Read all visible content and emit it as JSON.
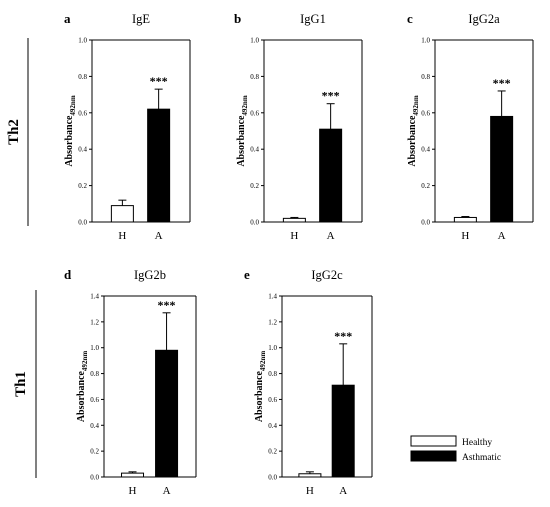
{
  "groups": [
    {
      "label": "Th2"
    },
    {
      "label": "Th1"
    }
  ],
  "legend": {
    "healthy": "Healthy",
    "asthmatic": "Asthmatic"
  },
  "colors": {
    "healthy_fill": "#ffffff",
    "asthmatic_fill": "#000000",
    "stroke": "#000000"
  },
  "chart_data": [
    {
      "type": "bar",
      "panel": "a",
      "title": "IgE",
      "group": "Th2",
      "ylabel_main": "Absorbance",
      "ylabel_sub": "492nm",
      "categories": [
        "H",
        "A"
      ],
      "values": [
        0.09,
        0.62
      ],
      "errors": [
        0.03,
        0.11
      ],
      "significance": [
        "",
        "***"
      ],
      "ylim": [
        0,
        1.0
      ],
      "yticks": [
        "0.0",
        "0.2",
        "0.4",
        "0.6",
        "0.8",
        "1.0"
      ]
    },
    {
      "type": "bar",
      "panel": "b",
      "title": "IgG1",
      "group": "Th2",
      "ylabel_main": "Absorbance",
      "ylabel_sub": "492nm",
      "categories": [
        "H",
        "A"
      ],
      "values": [
        0.02,
        0.51
      ],
      "errors": [
        0.005,
        0.14
      ],
      "significance": [
        "",
        "***"
      ],
      "ylim": [
        0,
        1.0
      ],
      "yticks": [
        "0.0",
        "0.2",
        "0.4",
        "0.6",
        "0.8",
        "1.0"
      ]
    },
    {
      "type": "bar",
      "panel": "c",
      "title": "IgG2a",
      "group": "Th2",
      "ylabel_main": "Absorbance",
      "ylabel_sub": "492nm",
      "categories": [
        "H",
        "A"
      ],
      "values": [
        0.025,
        0.58
      ],
      "errors": [
        0.005,
        0.14
      ],
      "significance": [
        "",
        "***"
      ],
      "ylim": [
        0,
        1.0
      ],
      "yticks": [
        "0.0",
        "0.2",
        "0.4",
        "0.6",
        "0.8",
        "1.0"
      ]
    },
    {
      "type": "bar",
      "panel": "d",
      "title": "IgG2b",
      "group": "Th1",
      "ylabel_main": "Absorbance",
      "ylabel_sub": "492nm",
      "categories": [
        "H",
        "A"
      ],
      "values": [
        0.03,
        0.98
      ],
      "errors": [
        0.01,
        0.29
      ],
      "significance": [
        "",
        "***"
      ],
      "ylim": [
        0,
        1.4
      ],
      "yticks": [
        "0.0",
        "0.2",
        "0.4",
        "0.6",
        "0.8",
        "1.0",
        "1.2",
        "1.4"
      ]
    },
    {
      "type": "bar",
      "panel": "e",
      "title": "IgG2c",
      "group": "Th1",
      "ylabel_main": "Absorbance",
      "ylabel_sub": "492nm",
      "categories": [
        "H",
        "A"
      ],
      "values": [
        0.025,
        0.71
      ],
      "errors": [
        0.015,
        0.32
      ],
      "significance": [
        "",
        "***"
      ],
      "ylim": [
        0,
        1.4
      ],
      "yticks": [
        "0.0",
        "0.2",
        "0.4",
        "0.6",
        "0.8",
        "1.0",
        "1.2",
        "1.4"
      ]
    }
  ]
}
